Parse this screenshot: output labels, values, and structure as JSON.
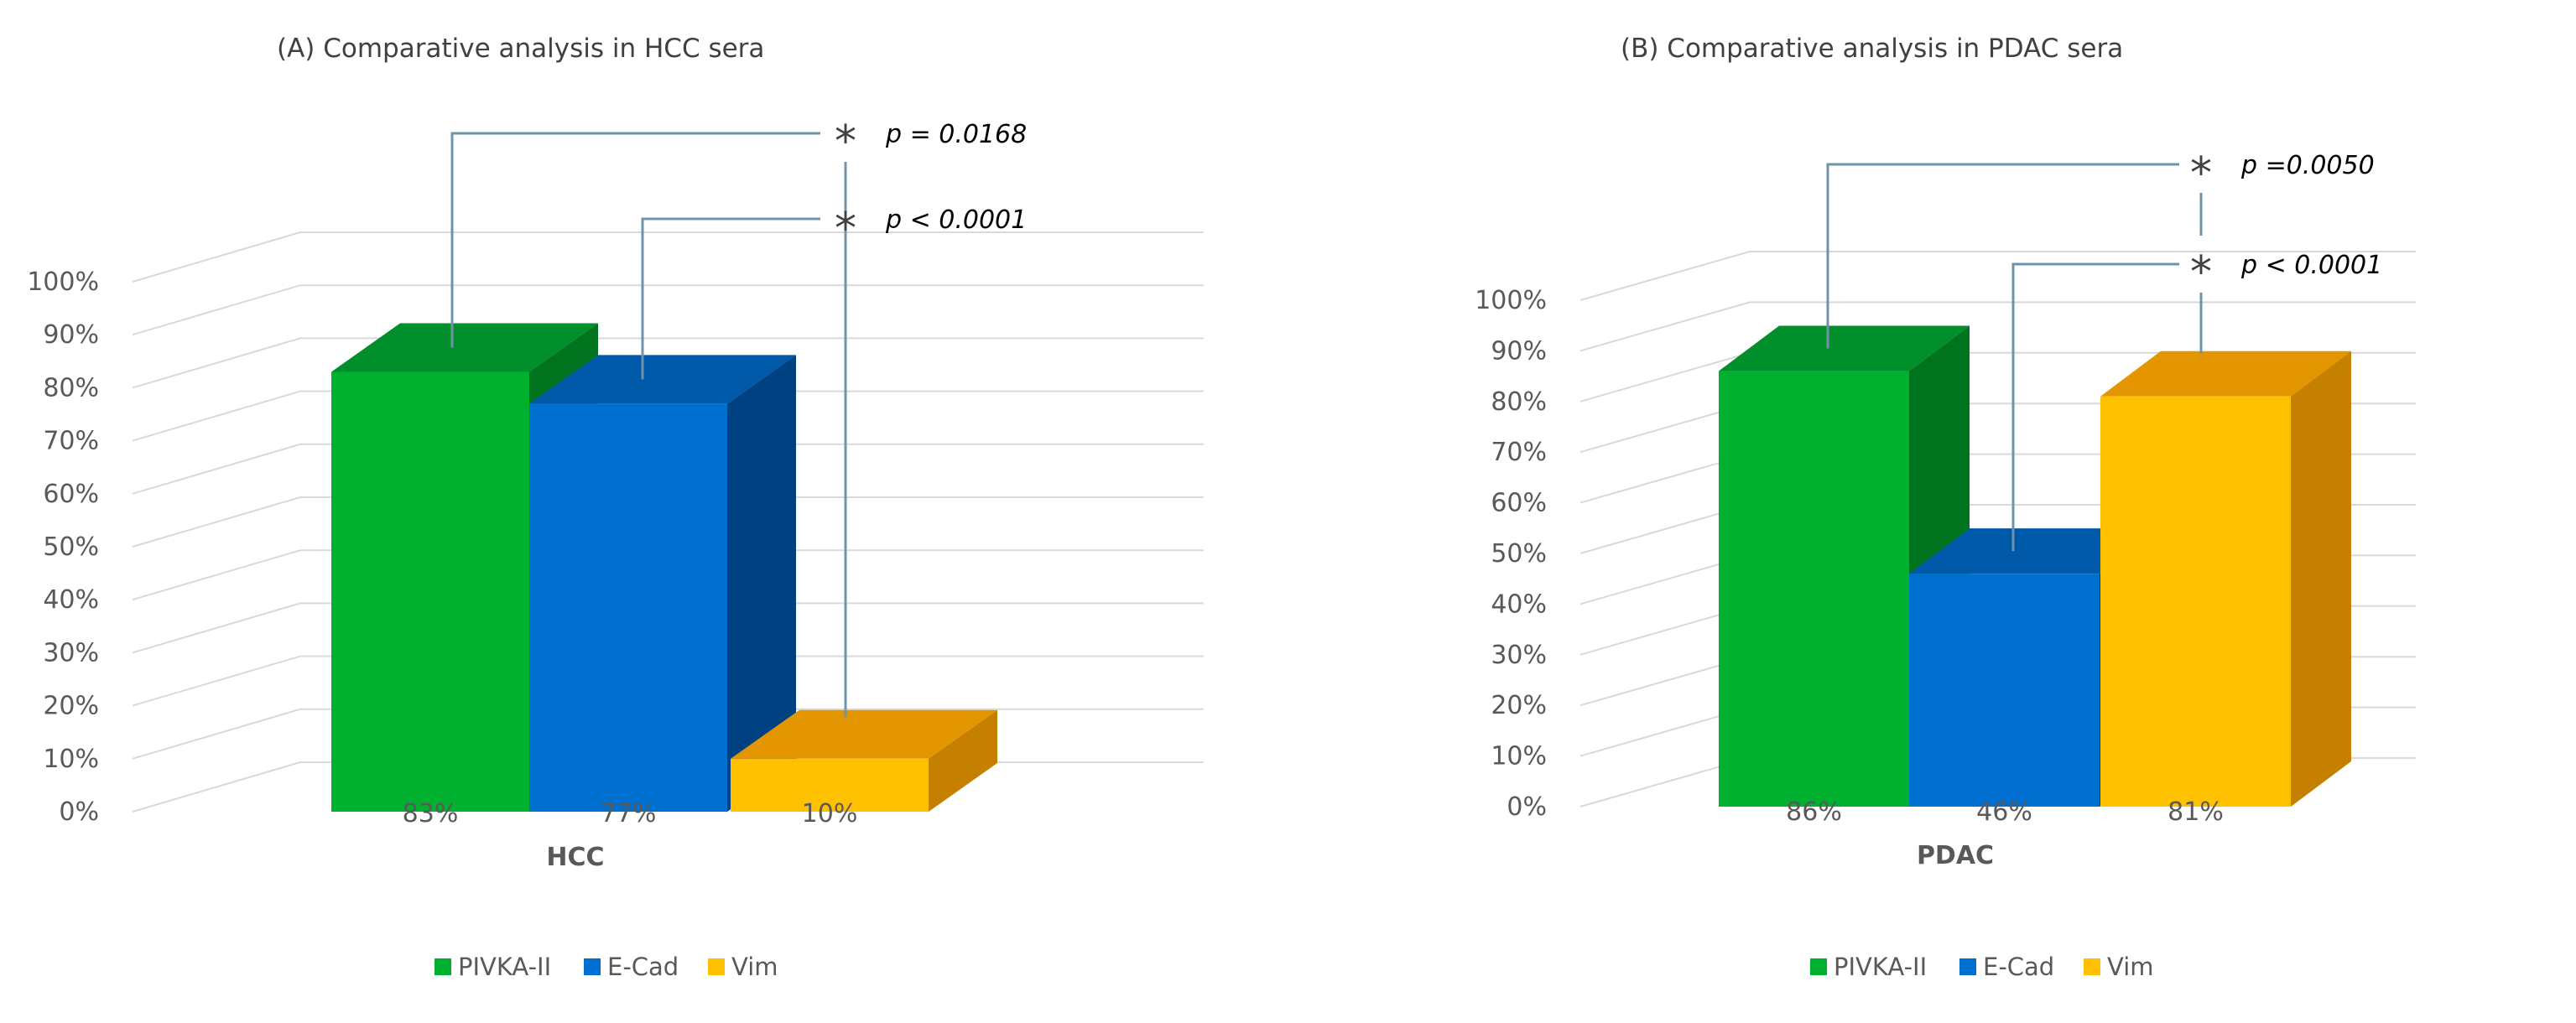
{
  "colors": {
    "PIVKA-II": {
      "front": "#00b02f",
      "top": "#008f2a",
      "side": "#00731e"
    },
    "E-Cad": {
      "front": "#0070d0",
      "top": "#0058a8",
      "side": "#004281"
    },
    "Vim": {
      "front": "#ffc000",
      "top": "#e49600",
      "side": "#c58000"
    },
    "grid": "#d9d9d9",
    "bracket": "#7093aa"
  },
  "chart_data": [
    {
      "type": "bar",
      "title": "(A) Comparative analysis in HCC sera",
      "xlabel": "HCC",
      "ylabel": "",
      "ylim": [
        0,
        100
      ],
      "yticks": [
        "0%",
        "10%",
        "20%",
        "30%",
        "40%",
        "50%",
        "60%",
        "70%",
        "80%",
        "90%",
        "100%"
      ],
      "categories": [
        "PIVKA-II",
        "E-Cad",
        "Vim"
      ],
      "values": [
        83,
        77,
        10
      ],
      "value_labels": [
        "83%",
        "77%",
        "10%"
      ],
      "legend": [
        "PIVKA-II",
        "E-Cad",
        "Vim"
      ],
      "legend_position": "bottom",
      "grid": true,
      "annotations": [
        {
          "comparison": [
            "PIVKA-II",
            "Vim"
          ],
          "star": "*",
          "text": "p = 0.0168"
        },
        {
          "comparison": [
            "E-Cad",
            "Vim"
          ],
          "star": "*",
          "text": "p < 0.0001"
        }
      ]
    },
    {
      "type": "bar",
      "title": "(B) Comparative analysis in PDAC sera",
      "xlabel": "PDAC",
      "ylabel": "",
      "ylim": [
        0,
        100
      ],
      "yticks": [
        "0%",
        "10%",
        "20%",
        "30%",
        "40%",
        "50%",
        "60%",
        "70%",
        "80%",
        "90%",
        "100%"
      ],
      "categories": [
        "PIVKA-II",
        "E-Cad",
        "Vim"
      ],
      "values": [
        86,
        46,
        81
      ],
      "value_labels": [
        "86%",
        "46%",
        "81%"
      ],
      "legend": [
        "PIVKA-II",
        "E-Cad",
        "Vim"
      ],
      "legend_position": "bottom",
      "grid": true,
      "annotations": [
        {
          "comparison": [
            "PIVKA-II",
            "Vim"
          ],
          "star": "*",
          "text": "p =0.0050"
        },
        {
          "comparison": [
            "E-Cad",
            "Vim"
          ],
          "star": "*",
          "text": "p < 0.0001"
        }
      ]
    }
  ]
}
